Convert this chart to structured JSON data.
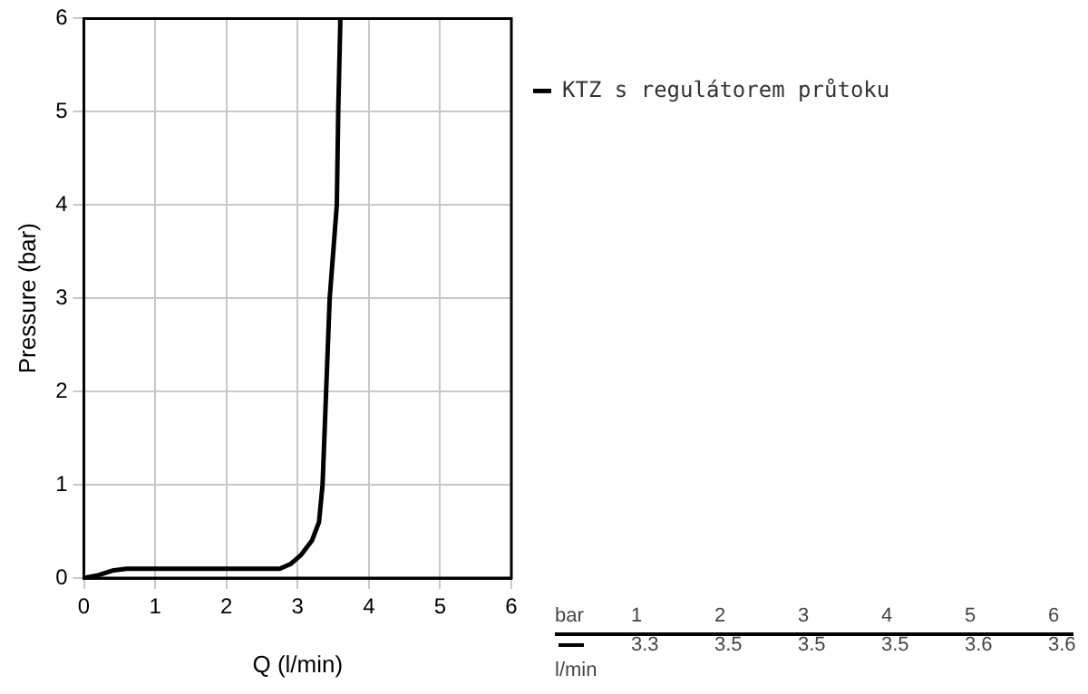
{
  "chart_data": {
    "type": "line",
    "xlabel": "Q (l/min)",
    "ylabel": "Pressure (bar)",
    "x": [
      0,
      0.2,
      0.4,
      0.6,
      1,
      2,
      2.75,
      2.9,
      3.05,
      3.2,
      3.3,
      3.35,
      3.4,
      3.45,
      3.5,
      3.55,
      3.57,
      3.6
    ],
    "series": [
      {
        "name": "KTZ s regulátorem průtoku",
        "color": "#000000",
        "values": [
          0,
          0.03,
          0.08,
          0.1,
          0.1,
          0.1,
          0.1,
          0.15,
          0.25,
          0.4,
          0.6,
          1,
          2,
          3,
          3.5,
          4,
          5,
          6
        ]
      }
    ],
    "xlim": [
      0,
      6
    ],
    "xticks": [
      0,
      1,
      2,
      3,
      4,
      5,
      6
    ],
    "ylim": [
      0,
      6
    ],
    "yticks": [
      0,
      1,
      2,
      3,
      4,
      5,
      6
    ],
    "grid": true,
    "legend": "top right",
    "marker": "none",
    "line_style": "solid",
    "annotations": [
      "bar",
      "1",
      "2",
      "3",
      "4",
      "5",
      "6",
      "l/min",
      "3.3",
      "3.5",
      "3.5",
      "3.5",
      "3.6",
      "3.6"
    ]
  }
}
